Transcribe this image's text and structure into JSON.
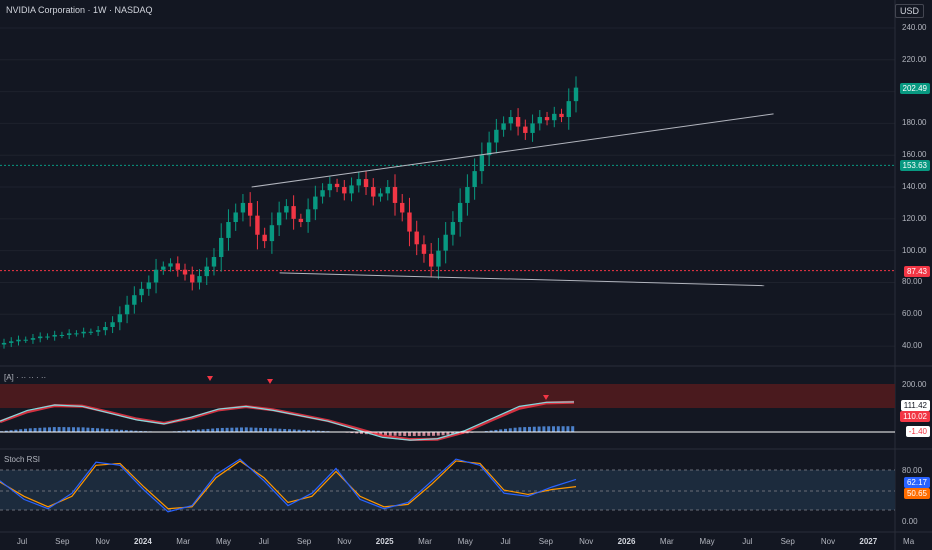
{
  "header": {
    "title": "NVIDIA Corporation · 1W · NASDAQ",
    "currency": "USD"
  },
  "price_axis": {
    "ticks": [
      "240.00",
      "220.00",
      "200.00",
      "180.00",
      "160.00",
      "140.00",
      "120.00",
      "100.00",
      "80.00",
      "60.00",
      "40.00"
    ],
    "tags": [
      {
        "label": "202.49",
        "color": "#089981"
      },
      {
        "label": "153.63",
        "color": "#089981"
      },
      {
        "label": "87.43",
        "color": "#f23645"
      }
    ]
  },
  "indicator1": {
    "label": "[A] · ·· ·· · ··",
    "ticks": [
      "200.00"
    ],
    "tags": [
      {
        "label": "111.42",
        "color": "#ffffff",
        "text_color": "#131722"
      },
      {
        "label": "110.02",
        "color": "#f23645",
        "text_color": "#ffffff"
      },
      {
        "label": "-1.40",
        "color": "#ffffff",
        "text_color": "#f23645"
      }
    ]
  },
  "indicator2": {
    "label": "Stoch RSI",
    "ticks": [
      "80.00",
      "0.00"
    ],
    "tags": [
      {
        "label": "62.17",
        "color": "#2962ff"
      },
      {
        "label": "50.65",
        "color": "#ff6d00"
      }
    ]
  },
  "time_axis": [
    {
      "label": "Jul",
      "bold": false
    },
    {
      "label": "Sep",
      "bold": false
    },
    {
      "label": "Nov",
      "bold": false
    },
    {
      "label": "2024",
      "bold": true
    },
    {
      "label": "Mar",
      "bold": false
    },
    {
      "label": "May",
      "bold": false
    },
    {
      "label": "Jul",
      "bold": false
    },
    {
      "label": "Sep",
      "bold": false
    },
    {
      "label": "Nov",
      "bold": false
    },
    {
      "label": "2025",
      "bold": true
    },
    {
      "label": "Mar",
      "bold": false
    },
    {
      "label": "May",
      "bold": false
    },
    {
      "label": "Jul",
      "bold": false
    },
    {
      "label": "Sep",
      "bold": false
    },
    {
      "label": "Nov",
      "bold": false
    },
    {
      "label": "2026",
      "bold": true
    },
    {
      "label": "Mar",
      "bold": false
    },
    {
      "label": "May",
      "bold": false
    },
    {
      "label": "Jul",
      "bold": false
    },
    {
      "label": "Sep",
      "bold": false
    },
    {
      "label": "Nov",
      "bold": false
    },
    {
      "label": "2027",
      "bold": true
    },
    {
      "label": "Ma",
      "bold": false
    }
  ],
  "chart_data": {
    "type": "candlestick",
    "symbol": "NVIDIA Corporation",
    "interval": "1W",
    "exchange": "NASDAQ",
    "ylim": [
      30,
      245
    ],
    "last_price": 202.49,
    "support": 87.43,
    "resistance": 153.63,
    "series_close": [
      42,
      43,
      44,
      44,
      45,
      46,
      46,
      47,
      47,
      48,
      48,
      49,
      49,
      50,
      52,
      55,
      60,
      66,
      72,
      76,
      80,
      88,
      90,
      92,
      88,
      85,
      80,
      84,
      90,
      96,
      108,
      118,
      124,
      130,
      122,
      110,
      106,
      116,
      124,
      128,
      120,
      118,
      126,
      134,
      138,
      142,
      140,
      136,
      141,
      145,
      140,
      134,
      136,
      140,
      130,
      124,
      112,
      104,
      98,
      90,
      100,
      110,
      118,
      130,
      140,
      150,
      160,
      168,
      176,
      180,
      184,
      178,
      174,
      180,
      184,
      182,
      186,
      184,
      194,
      202.49
    ],
    "upper_channel": [
      [
        0.27,
        140
      ],
      [
        0.83,
        186
      ]
    ],
    "lower_channel": [
      [
        0.3,
        86
      ],
      [
        0.82,
        78
      ]
    ],
    "indicator1_overlay": [
      40,
      80,
      100,
      95,
      70,
      45,
      30,
      55,
      85,
      95,
      80,
      60,
      40,
      10,
      -20,
      -30,
      -25,
      5,
      50,
      95,
      110,
      111.42
    ],
    "indicator1_signal": [
      38,
      75,
      98,
      96,
      73,
      48,
      32,
      52,
      82,
      94,
      82,
      62,
      42,
      14,
      -15,
      -28,
      -27,
      0,
      45,
      88,
      108,
      110.02
    ],
    "stoch_k": [
      60,
      30,
      15,
      40,
      90,
      85,
      45,
      10,
      20,
      70,
      95,
      60,
      20,
      40,
      80,
      30,
      15,
      25,
      60,
      95,
      85,
      40,
      35,
      50,
      62.17
    ],
    "stoch_d": [
      58,
      35,
      18,
      35,
      85,
      88,
      50,
      15,
      18,
      65,
      92,
      65,
      25,
      35,
      75,
      35,
      18,
      22,
      55,
      92,
      88,
      45,
      38,
      46,
      50.65
    ]
  }
}
